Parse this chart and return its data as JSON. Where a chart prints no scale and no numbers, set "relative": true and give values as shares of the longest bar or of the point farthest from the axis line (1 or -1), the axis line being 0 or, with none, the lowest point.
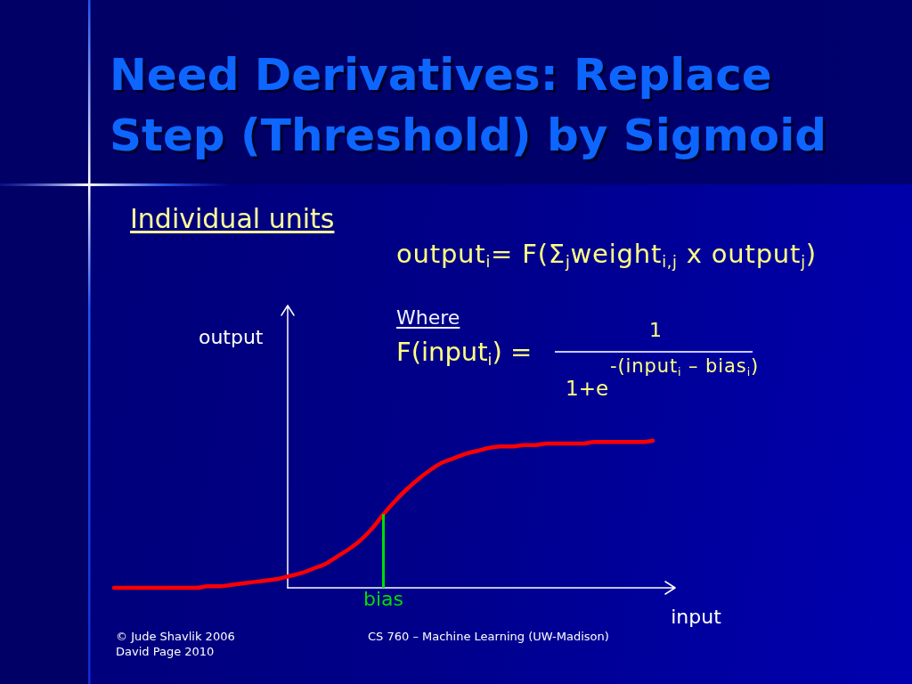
{
  "chart_data": {
    "type": "line",
    "title": "Need Derivatives: Replace Step (Threshold) by Sigmoid",
    "subtitle": "Individual units",
    "xlabel": "input",
    "ylabel": "output",
    "relative": true,
    "categories": [
      null,
      null,
      null,
      null,
      null,
      null,
      null,
      null,
      null,
      null,
      null,
      null,
      null,
      null,
      null,
      null,
      null,
      null,
      null,
      null,
      null,
      null,
      null,
      null,
      null,
      null,
      null,
      null,
      null,
      null,
      null,
      null,
      null,
      null,
      null,
      null,
      null,
      null,
      null,
      null,
      null,
      null,
      null,
      null,
      null,
      null,
      null
    ],
    "series": [
      {
        "color": "#ff0000",
        "values": [
          0,
          0,
          0,
          0,
          0,
          0,
          0,
          0,
          0.01,
          0.01,
          0.02,
          0.03,
          0.04,
          0.05,
          0.06,
          0.08,
          0.1,
          0.13,
          0.16,
          0.21,
          0.26,
          0.32,
          0.4,
          0.5,
          0.59,
          0.67,
          0.74,
          0.8,
          0.85,
          0.88,
          0.91,
          0.93,
          0.95,
          0.96,
          0.96,
          0.97,
          0.97,
          0.98,
          0.98,
          0.98,
          0.98,
          0.99,
          0.99,
          0.99,
          0.99,
          0.99,
          1
        ]
      }
    ],
    "ref_lines": [
      {
        "axis": "x",
        "label": "bias",
        "color": "#00dd00"
      }
    ],
    "annotations": [
      "output$_{i}$= F(Σ$_{j}$weight$_{i,j}$ x output$_{j}$)",
      "Where",
      "F(input$_{i}$) =",
      "1",
      "1+e",
      "-(input$_{i}$ – bias$_{i}$)",
      "© Jude Shavlik 2006",
      "David Page 2010",
      "CS 760 – Machine Learning (UW-Madison)"
    ]
  }
}
